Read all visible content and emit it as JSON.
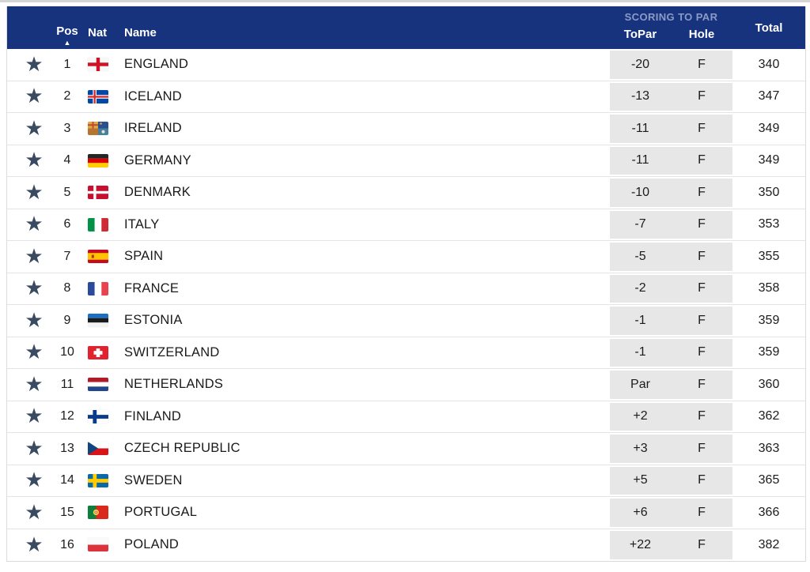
{
  "table": {
    "header": {
      "pos": "Pos",
      "nat": "Nat",
      "name": "Name",
      "scoring_group": "SCORING TO PAR",
      "topar": "ToPar",
      "hole": "Hole",
      "total": "Total"
    },
    "icons": {
      "favorite_star": "★",
      "sort_ascending": "▲"
    },
    "colors": {
      "header_bg": "#17337e",
      "scoring_label": "#8b9bc5",
      "score_cell_bg": "#e7e7e7",
      "star": "#394a61"
    },
    "rows": [
      {
        "pos": "1",
        "flag": "england-flag-icon",
        "name": "ENGLAND",
        "topar": "-20",
        "hole": "F",
        "total": "340"
      },
      {
        "pos": "2",
        "flag": "iceland-flag-icon",
        "name": "ICELAND",
        "topar": "-13",
        "hole": "F",
        "total": "347"
      },
      {
        "pos": "3",
        "flag": "ireland-flag-icon",
        "name": "IRELAND",
        "topar": "-11",
        "hole": "F",
        "total": "349"
      },
      {
        "pos": "4",
        "flag": "germany-flag-icon",
        "name": "GERMANY",
        "topar": "-11",
        "hole": "F",
        "total": "349"
      },
      {
        "pos": "5",
        "flag": "denmark-flag-icon",
        "name": "DENMARK",
        "topar": "-10",
        "hole": "F",
        "total": "350"
      },
      {
        "pos": "6",
        "flag": "italy-flag-icon",
        "name": "ITALY",
        "topar": "-7",
        "hole": "F",
        "total": "353"
      },
      {
        "pos": "7",
        "flag": "spain-flag-icon",
        "name": "SPAIN",
        "topar": "-5",
        "hole": "F",
        "total": "355"
      },
      {
        "pos": "8",
        "flag": "france-flag-icon",
        "name": "FRANCE",
        "topar": "-2",
        "hole": "F",
        "total": "358"
      },
      {
        "pos": "9",
        "flag": "estonia-flag-icon",
        "name": "ESTONIA",
        "topar": "-1",
        "hole": "F",
        "total": "359"
      },
      {
        "pos": "10",
        "flag": "switzerland-flag-icon",
        "name": "SWITZERLAND",
        "topar": "-1",
        "hole": "F",
        "total": "359"
      },
      {
        "pos": "11",
        "flag": "netherlands-flag-icon",
        "name": "NETHERLANDS",
        "topar": "Par",
        "hole": "F",
        "total": "360"
      },
      {
        "pos": "12",
        "flag": "finland-flag-icon",
        "name": "FINLAND",
        "topar": "+2",
        "hole": "F",
        "total": "362"
      },
      {
        "pos": "13",
        "flag": "czech-republic-flag-icon",
        "name": "CZECH REPUBLIC",
        "topar": "+3",
        "hole": "F",
        "total": "363"
      },
      {
        "pos": "14",
        "flag": "sweden-flag-icon",
        "name": "SWEDEN",
        "topar": "+5",
        "hole": "F",
        "total": "365"
      },
      {
        "pos": "15",
        "flag": "portugal-flag-icon",
        "name": "PORTUGAL",
        "topar": "+6",
        "hole": "F",
        "total": "366"
      },
      {
        "pos": "16",
        "flag": "poland-flag-icon",
        "name": "POLAND",
        "topar": "+22",
        "hole": "F",
        "total": "382"
      }
    ]
  }
}
